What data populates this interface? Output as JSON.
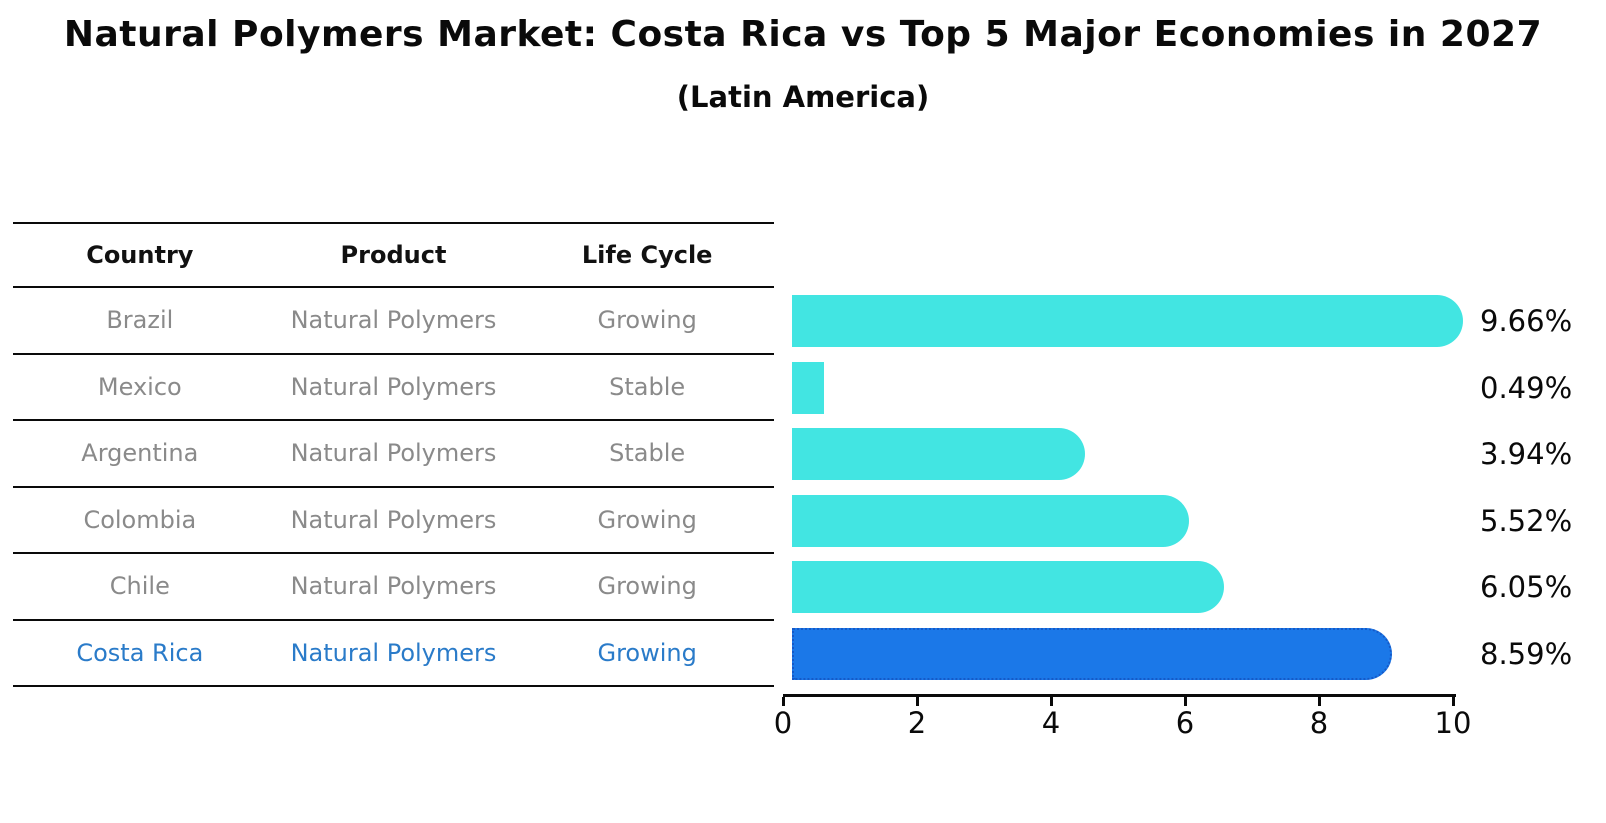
{
  "title": "Natural Polymers Market: Costa Rica vs Top 5 Major Economies in 2027",
  "subtitle": "(Latin America)",
  "table": {
    "headers": {
      "country": "Country",
      "product": "Product",
      "life_cycle": "Life Cycle"
    },
    "rows": [
      {
        "country": "Brazil",
        "product": "Natural Polymers",
        "life_cycle": "Growing",
        "highlight": false
      },
      {
        "country": "Mexico",
        "product": "Natural Polymers",
        "life_cycle": "Stable",
        "highlight": false
      },
      {
        "country": "Argentina",
        "product": "Natural Polymers",
        "life_cycle": "Stable",
        "highlight": false
      },
      {
        "country": "Colombia",
        "product": "Natural Polymers",
        "life_cycle": "Growing",
        "highlight": false
      },
      {
        "country": "Chile",
        "product": "Natural Polymers",
        "life_cycle": "Growing",
        "highlight": false
      },
      {
        "country": "Costa Rica",
        "product": "Natural Polymers",
        "life_cycle": "Growing",
        "highlight": true
      }
    ]
  },
  "chart_data": {
    "type": "bar",
    "orientation": "horizontal",
    "title": "Natural Polymers Market: Costa Rica vs Top 5 Major Economies in 2027",
    "subtitle": "(Latin America)",
    "categories": [
      "Brazil",
      "Mexico",
      "Argentina",
      "Colombia",
      "Chile",
      "Costa Rica"
    ],
    "values": [
      9.66,
      0.49,
      3.94,
      5.52,
      6.05,
      8.59
    ],
    "value_labels": [
      "9.66%",
      "0.49%",
      "3.94%",
      "5.52%",
      "6.05%",
      "8.59%"
    ],
    "xlabel": "",
    "ylabel": "",
    "xlim": [
      0,
      10
    ],
    "x_ticks": [
      0,
      2,
      4,
      6,
      8,
      10
    ],
    "grid": false,
    "legend": false,
    "highlight_index": 5,
    "value_unit": "%"
  },
  "colors": {
    "bar_cyan": "#42E5E2",
    "bar_blue": "#1B78E8",
    "bar_blue_border": "#1559C8",
    "text_gray": "#8a8a8a",
    "text_blue": "#2A7BC9",
    "ink": "#111111"
  }
}
